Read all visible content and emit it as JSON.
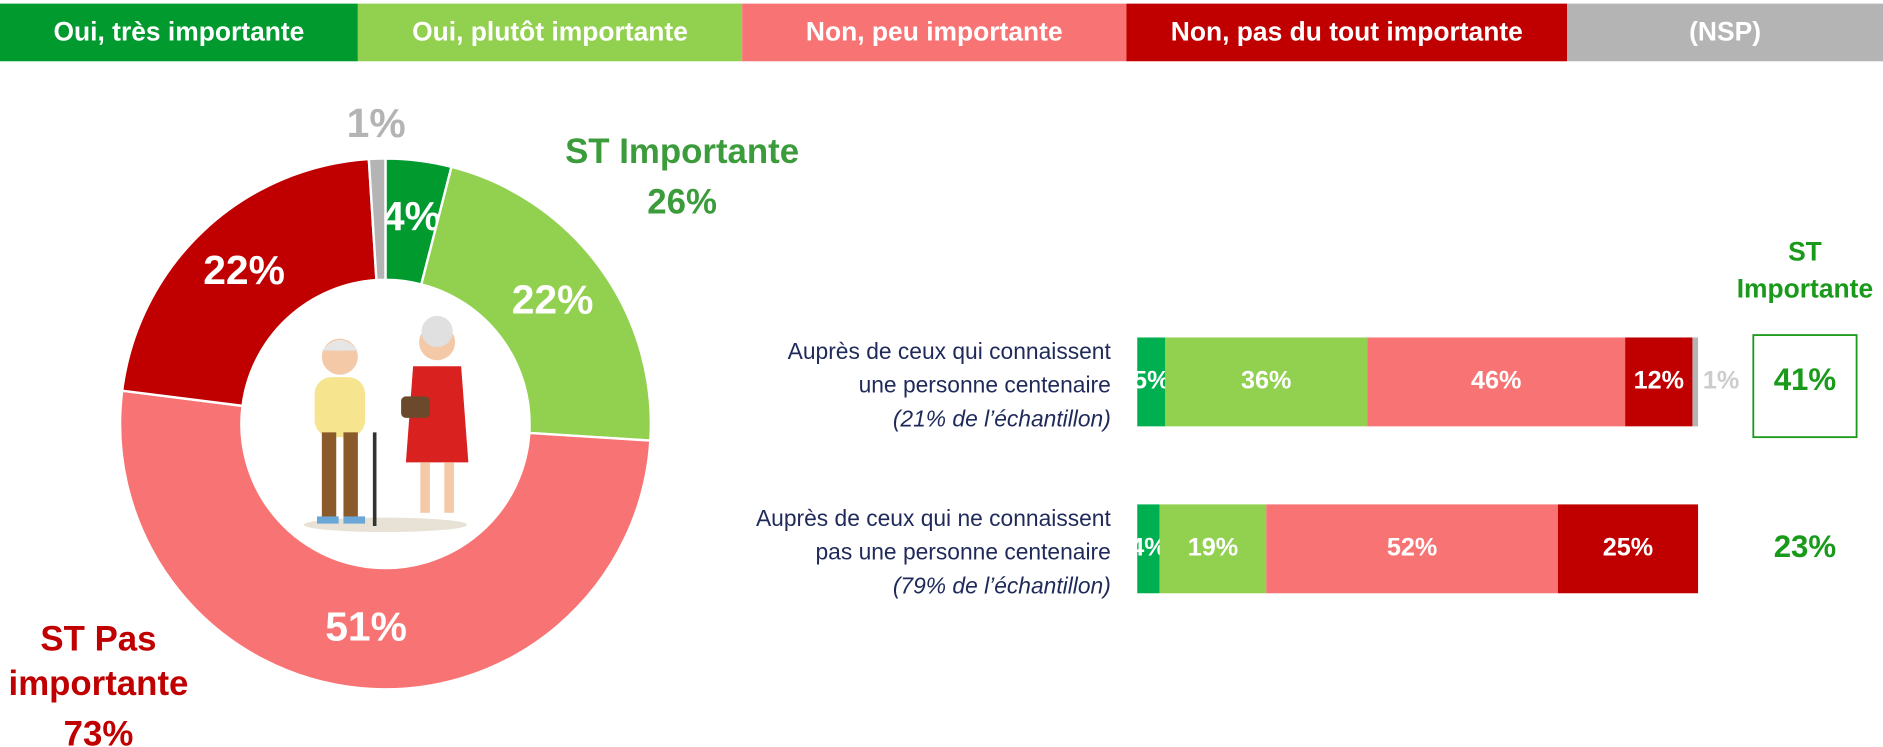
{
  "chart_data": [
    {
      "type": "donut",
      "categories": [
        "Oui, très importante",
        "Oui, plutôt importante",
        "Non, peu importante",
        "Non, pas du tout importante",
        "(NSP)"
      ],
      "colors": [
        "#009a2e",
        "#92d050",
        "#f87474",
        "#c00000",
        "#b4b4b4"
      ],
      "values": [
        4,
        22,
        51,
        22,
        1
      ],
      "value_labels": [
        "4%",
        "22%",
        "51%",
        "22%",
        "1%"
      ],
      "summaries": [
        {
          "label": [
            "ST Importante"
          ],
          "value": 26,
          "value_label": "26%",
          "color": "#3c9c3c"
        },
        {
          "label": [
            "ST Pas",
            "importante"
          ],
          "value": 73,
          "value_label": "73%",
          "color": "#c00000"
        }
      ]
    },
    {
      "type": "stacked_bar",
      "orientation": "horizontal",
      "categories": [
        [
          "Auprès de ceux qui connaissent",
          "une personne centenaire"
        ],
        [
          "Auprès de ceux qui ne connaissent",
          "pas une personne centenaire"
        ]
      ],
      "category_notes": [
        "(21% de l’échantillon)",
        "(79% de l’échantillon)"
      ],
      "xlim": [
        0,
        100
      ],
      "series": [
        {
          "name": "Oui, très importante",
          "color": "#00b050",
          "values": [
            5,
            4
          ],
          "value_labels": [
            "5%",
            "4%"
          ]
        },
        {
          "name": "Oui, plutôt importante",
          "color": "#92d050",
          "values": [
            36,
            19
          ],
          "value_labels": [
            "36%",
            "19%"
          ]
        },
        {
          "name": "Non, peu importante",
          "color": "#f87474",
          "values": [
            46,
            52
          ],
          "value_labels": [
            "46%",
            "52%"
          ]
        },
        {
          "name": "Non, pas du tout importante",
          "color": "#c00000",
          "values": [
            12,
            25
          ],
          "value_labels": [
            "12%",
            "25%"
          ]
        },
        {
          "name": "(NSP)",
          "color": "#b4b4b4",
          "values": [
            1,
            null
          ],
          "value_labels": [
            "1%",
            null
          ]
        }
      ],
      "totals": {
        "title": [
          "ST",
          "Importante"
        ],
        "color": "#1a9a1a",
        "values": [
          41,
          23
        ],
        "value_labels": [
          "41%",
          "23%"
        ]
      }
    }
  ]
}
